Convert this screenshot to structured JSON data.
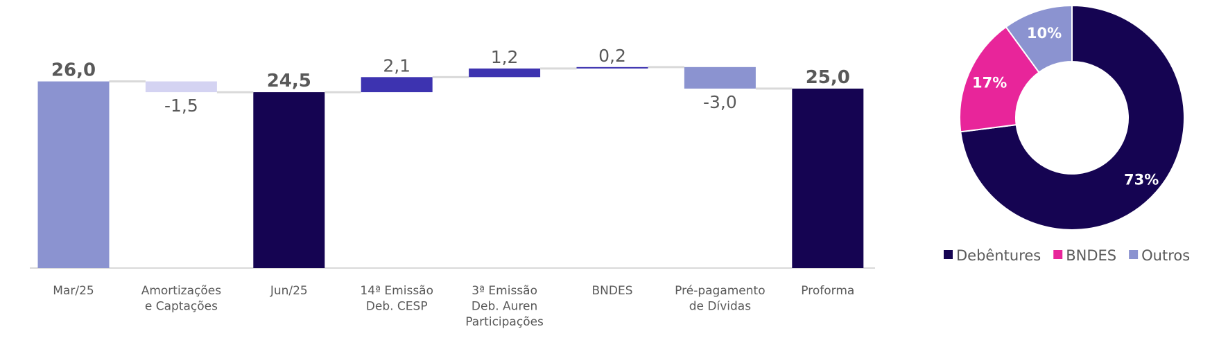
{
  "chart_data": [
    {
      "type": "bar",
      "subtype": "waterfall",
      "categories": [
        [
          "Mar/25"
        ],
        [
          "Amortizações",
          "e Captações"
        ],
        [
          "Jun/25"
        ],
        [
          "14ª Emissão",
          "Deb. CESP"
        ],
        [
          "3ª Emissão",
          "Deb. Auren",
          "Participações"
        ],
        [
          "BNDES"
        ],
        [
          "Pré-pagamento",
          "de Dívidas"
        ],
        [
          "Proforma"
        ]
      ],
      "steps": [
        {
          "kind": "total",
          "value": 26.0,
          "label": "26,0",
          "color": "#8B93D0"
        },
        {
          "kind": "delta",
          "value": -1.5,
          "label": "-1,5",
          "color": "#D4D3F2"
        },
        {
          "kind": "total",
          "value": 24.5,
          "label": "24,5",
          "color": "#150452"
        },
        {
          "kind": "delta",
          "value": 2.1,
          "label": "2,1",
          "color": "#3D33B0"
        },
        {
          "kind": "delta",
          "value": 1.2,
          "label": "1,2",
          "color": "#3D33B0"
        },
        {
          "kind": "delta",
          "value": 0.2,
          "label": "0,2",
          "color": "#3D33B0"
        },
        {
          "kind": "delta",
          "value": -3.0,
          "label": "-3,0",
          "color": "#8B93D0"
        },
        {
          "kind": "total",
          "value": 25.0,
          "label": "25,0",
          "color": "#150452"
        }
      ],
      "ylim": [
        0,
        33
      ],
      "grid": false,
      "connector_color": "#D9D9D9"
    },
    {
      "type": "pie",
      "subtype": "donut",
      "slices": [
        {
          "name": "Debêntures",
          "value": 73,
          "label": "73%",
          "color": "#150452"
        },
        {
          "name": "BNDES",
          "value": 17,
          "label": "17%",
          "color": "#E8259A"
        },
        {
          "name": "Outros",
          "value": 10,
          "label": "10%",
          "color": "#8B93D0"
        }
      ],
      "legend_placement": "bottom"
    }
  ]
}
